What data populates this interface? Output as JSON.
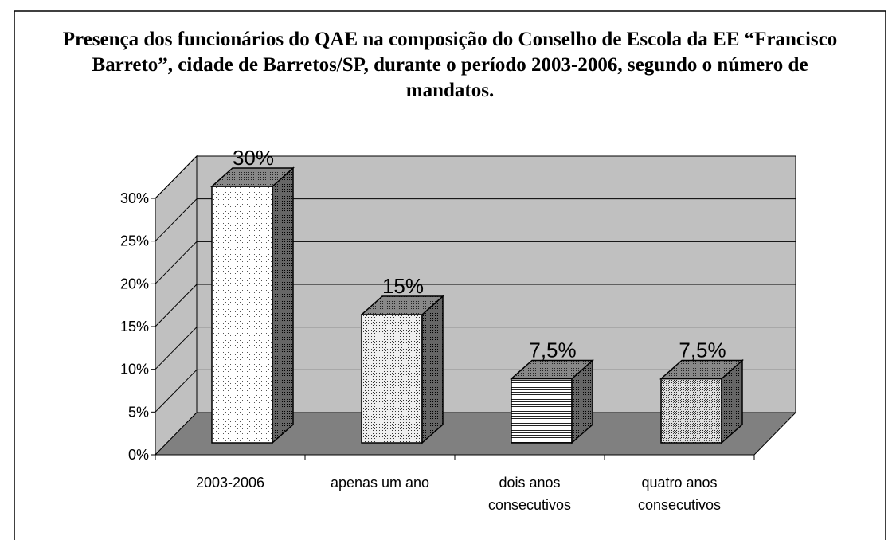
{
  "chart_data": {
    "type": "bar3d",
    "title": "Presença dos funcionários do QAE na composição do Conselho de Escola da EE “Francisco Barreto”, cidade de Barretos/SP, durante o período 2003-2006, segundo o número de mandatos.",
    "categories": [
      "2003-2006",
      "apenas um ano",
      "dois anos consecutivos",
      "quatro anos consecutivos"
    ],
    "values": [
      30,
      15,
      7.5,
      7.5
    ],
    "value_labels": [
      "30%",
      "15%",
      "7,5%",
      "7,5%"
    ],
    "ylim": [
      0,
      30
    ],
    "yticks": [
      {
        "value": 0,
        "label": "0%"
      },
      {
        "value": 5,
        "label": "5%"
      },
      {
        "value": 10,
        "label": "10%"
      },
      {
        "value": 15,
        "label": "15%"
      },
      {
        "value": 20,
        "label": "20%"
      },
      {
        "value": 25,
        "label": "25%"
      },
      {
        "value": 30,
        "label": "30%"
      }
    ],
    "grid": true
  }
}
